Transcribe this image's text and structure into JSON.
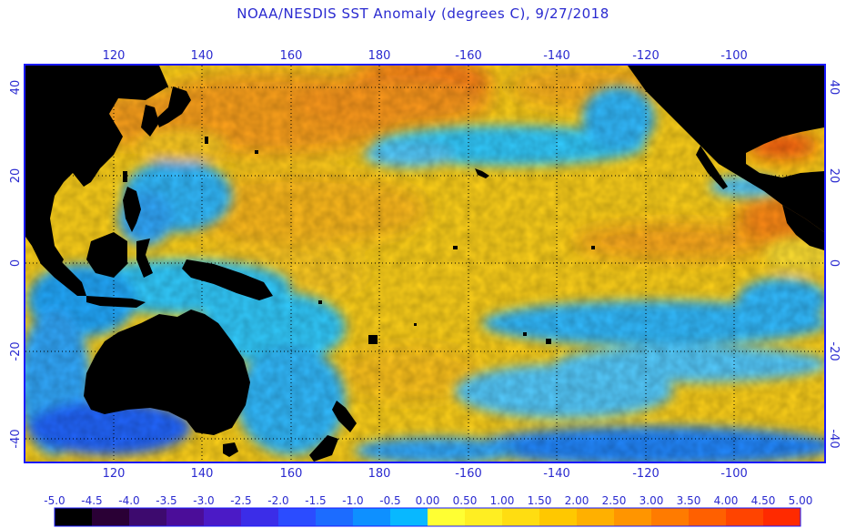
{
  "title": "NOAA/NESDIS SST Anomaly (degrees C), 9/27/2018",
  "map": {
    "lon_top_labels": [
      "120",
      "140",
      "160",
      "180",
      "-160",
      "-140",
      "-120",
      "-100"
    ],
    "lon_bottom_labels": [
      "120",
      "140",
      "160",
      "180",
      "-160",
      "-140",
      "-120",
      "-100"
    ],
    "lat_left_labels": [
      "40",
      "20",
      "0",
      "-20",
      "-40"
    ],
    "lat_right_labels": [
      "40",
      "20",
      "0",
      "-20",
      "-40"
    ]
  },
  "colorbar": {
    "labels": [
      "-5.0",
      "-4.5",
      "-4.0",
      "-3.5",
      "-3.0",
      "-2.5",
      "-2.0",
      "-1.5",
      "-1.0",
      "-0.5",
      "0.00",
      "0.50",
      "1.00",
      "1.50",
      "2.00",
      "2.50",
      "3.00",
      "3.50",
      "4.00",
      "4.50",
      "5.00"
    ],
    "colors": [
      "#000000",
      "#2a0035",
      "#3d0a6e",
      "#4b0d99",
      "#4b1ac6",
      "#3b2de8",
      "#2b4cff",
      "#1c6cff",
      "#0e90ff",
      "#08b8ff",
      "#ffff33",
      "#ffee22",
      "#ffdd11",
      "#ffc800",
      "#ffb000",
      "#ff9500",
      "#ff7b00",
      "#ff6000",
      "#ff4400",
      "#ff2a00"
    ]
  },
  "colors": {
    "border": "#1a1aff",
    "label": "#2a2ad0",
    "land": "#000000",
    "grid": "#000000"
  }
}
